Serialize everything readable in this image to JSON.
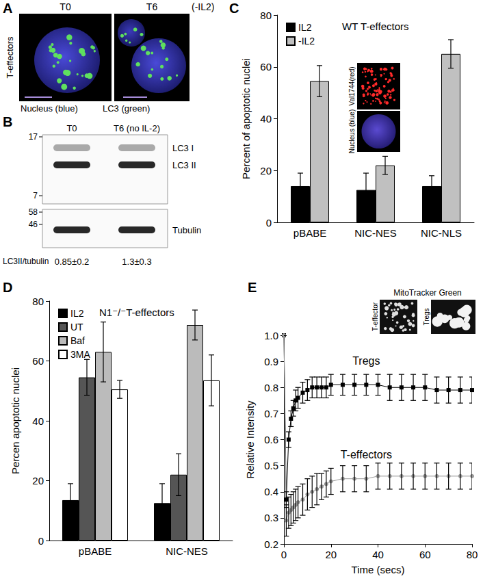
{
  "panels": [
    {
      "panel": "A",
      "side_label": "T-effectors",
      "images": [
        "T0",
        "T6"
      ],
      "condition": "(-IL2)",
      "channels": [
        "Nucleus (blue)",
        "LC3 (green)"
      ]
    },
    {
      "panel": "B",
      "lanes": [
        "T0",
        "T6 (no IL-2)"
      ],
      "blots": [
        {
          "markers": [
            17,
            7
          ],
          "bands": [
            "LC3 I",
            "LC3 II"
          ]
        },
        {
          "markers": [
            58,
            46
          ],
          "bands": [
            "Tubulin"
          ]
        }
      ],
      "ratio": {
        "label": "LC3II/tubulin",
        "values": [
          "0.85±0.2",
          "1.3±0.3"
        ]
      }
    }
  ],
  "chart_data": [
    {
      "panel": "C",
      "type": "bar",
      "title": "WT T-effectors",
      "y_label": "Percent of apoptotic nuclei",
      "categories": [
        "pBABE",
        "NIC-NES",
        "NIC-NLS"
      ],
      "series": [
        {
          "name": "IL2",
          "color": "#000000",
          "values": [
            14,
            12.5,
            14
          ],
          "errors": [
            5,
            6.5,
            4
          ]
        },
        {
          "name": "-IL2",
          "color": "#c0c0c0",
          "values": [
            54.5,
            22,
            65
          ],
          "errors": [
            6,
            3.5,
            5.5
          ]
        }
      ],
      "ylim": [
        0,
        80
      ],
      "yticks": [
        0,
        20,
        40,
        60,
        80
      ],
      "grid": false,
      "legend": "upper left",
      "inset": {
        "labels": [
          "Val1744(red)",
          "Nucleus (blue)"
        ]
      }
    },
    {
      "panel": "D",
      "type": "bar",
      "title": "N1⁻/⁻T-effectors",
      "y_label": "Percen apoptotic nuclei",
      "categories": [
        "pBABE",
        "NIC-NES"
      ],
      "series": [
        {
          "name": "IL2",
          "color": "#000000",
          "values": [
            13.5,
            12.5
          ],
          "errors": [
            5.5,
            6.5
          ]
        },
        {
          "name": "UT",
          "color": "#555555",
          "values": [
            54.5,
            22
          ],
          "errors": [
            6,
            7
          ]
        },
        {
          "name": "Baf",
          "color": "#bbbbbb",
          "values": [
            63,
            72
          ],
          "errors": [
            10,
            5
          ]
        },
        {
          "name": "3MA",
          "color": "#ffffff",
          "values": [
            50.5,
            53.5
          ],
          "errors": [
            3,
            8.5
          ]
        }
      ],
      "ylim": [
        0,
        80
      ],
      "yticks": [
        0,
        20,
        40,
        60,
        80
      ],
      "grid": false,
      "legend": "upper left"
    },
    {
      "panel": "E",
      "type": "line",
      "x_label": "Time (secs)",
      "y_label": "Relative Intensity",
      "x": [
        0,
        1,
        2,
        3,
        4,
        5,
        6,
        8,
        10,
        12,
        14,
        16,
        18,
        20,
        25,
        30,
        35,
        40,
        45,
        50,
        55,
        60,
        65,
        70,
        75,
        80
      ],
      "series": [
        {
          "name": "Tregs",
          "color": "#000000",
          "marker": "square",
          "values": [
            1.0,
            0.37,
            0.6,
            0.68,
            0.72,
            0.75,
            0.76,
            0.78,
            0.79,
            0.8,
            0.8,
            0.8,
            0.8,
            0.81,
            0.81,
            0.81,
            0.81,
            0.81,
            0.8,
            0.8,
            0.8,
            0.8,
            0.79,
            0.79,
            0.79,
            0.79
          ],
          "errors": [
            0,
            0.03,
            0.03,
            0.03,
            0.03,
            0.04,
            0.04,
            0.04,
            0.04,
            0.04,
            0.04,
            0.04,
            0.04,
            0.04,
            0.04,
            0.04,
            0.04,
            0.04,
            0.05,
            0.05,
            0.05,
            0.05,
            0.05,
            0.05,
            0.05,
            0.05
          ]
        },
        {
          "name": "T-effectors",
          "color": "#999999",
          "marker": "circle",
          "values": [
            1.0,
            0.29,
            0.32,
            0.33,
            0.34,
            0.35,
            0.36,
            0.37,
            0.39,
            0.4,
            0.41,
            0.42,
            0.43,
            0.44,
            0.45,
            0.45,
            0.45,
            0.46,
            0.46,
            0.46,
            0.46,
            0.46,
            0.46,
            0.46,
            0.46,
            0.46
          ],
          "errors": [
            0,
            0.06,
            0.06,
            0.06,
            0.06,
            0.06,
            0.06,
            0.06,
            0.06,
            0.06,
            0.06,
            0.05,
            0.05,
            0.05,
            0.05,
            0.05,
            0.05,
            0.05,
            0.05,
            0.05,
            0.05,
            0.05,
            0.05,
            0.05,
            0.05,
            0.05
          ]
        }
      ],
      "xlim": [
        0,
        80
      ],
      "xticks": [
        0,
        20,
        40,
        60,
        80
      ],
      "ylim": [
        0.2,
        1
      ],
      "yticks": [
        0.2,
        0.3,
        0.4,
        0.5,
        0.6,
        0.7,
        0.8,
        0.9,
        {
          "value": 1,
          "label": "1.0"
        }
      ],
      "grid": false,
      "inset": {
        "title": "MitoTracker Green",
        "labels": [
          "T-effector",
          "Tregs"
        ]
      }
    }
  ]
}
